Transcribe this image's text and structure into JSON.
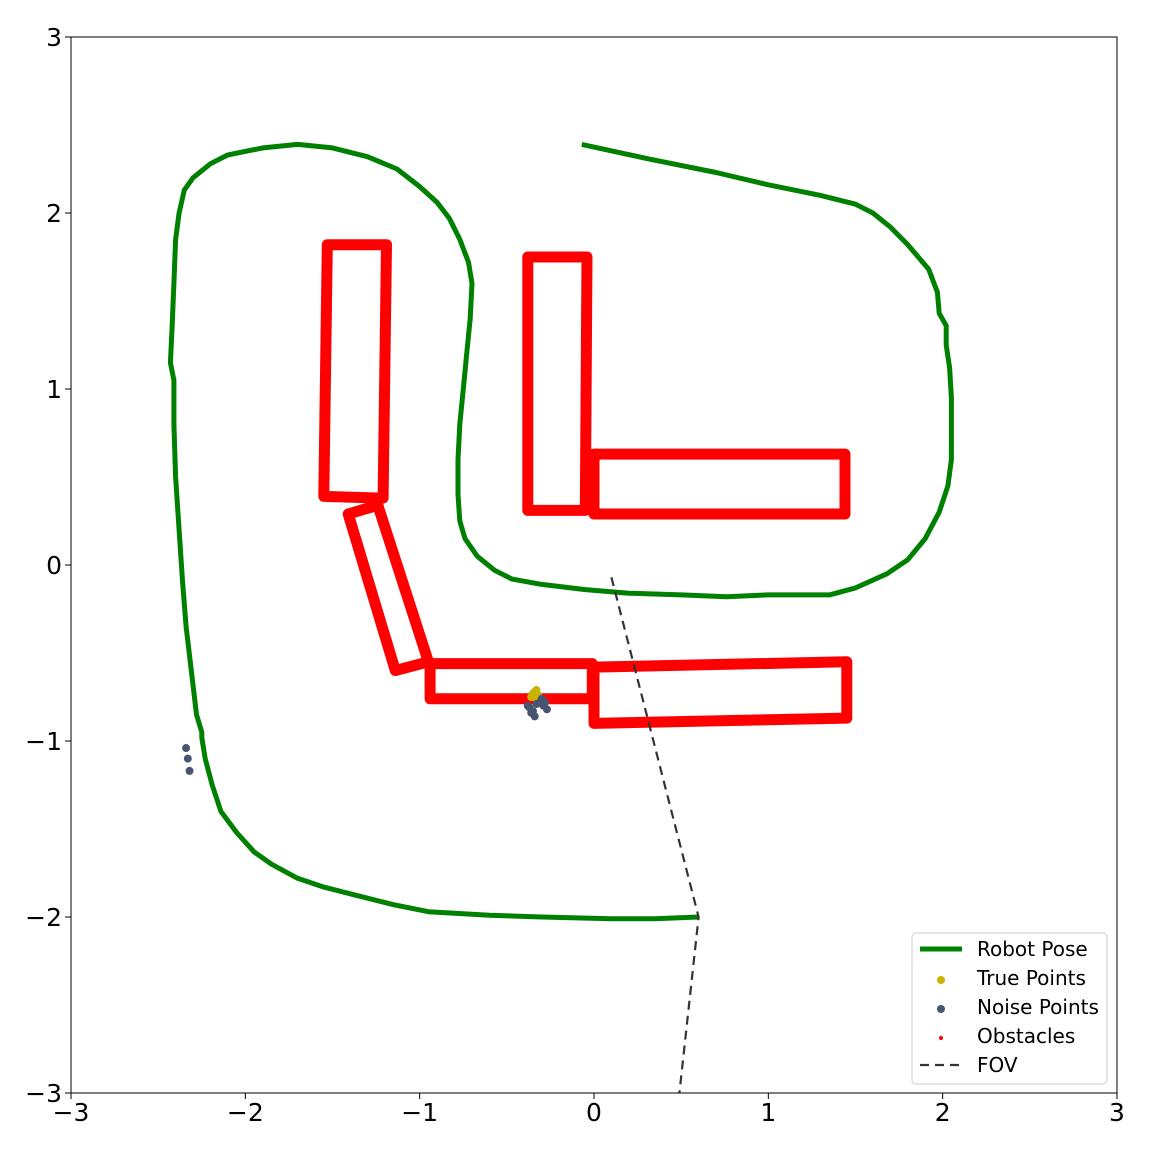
{
  "chart_data": {
    "type": "scatter",
    "title": "",
    "xlabel": "",
    "ylabel": "",
    "xlim": [
      -3,
      3
    ],
    "ylim": [
      -3,
      3
    ],
    "x_ticks": [
      -3,
      -2,
      -1,
      0,
      1,
      2,
      3
    ],
    "y_ticks": [
      -3,
      -2,
      -1,
      0,
      1,
      2,
      3
    ],
    "x_tick_labels": [
      "−3",
      "−2",
      "−1",
      "0",
      "1",
      "2",
      "3"
    ],
    "y_tick_labels": [
      "−3",
      "−2",
      "−1",
      "0",
      "1",
      "2",
      "3"
    ],
    "grid": false,
    "legend_position": "bottom-right",
    "series": [
      {
        "name": "Robot Pose",
        "kind": "line",
        "color": "#008000",
        "points": [
          [
            -0.07,
            2.39
          ],
          [
            0.3,
            2.31
          ],
          [
            0.7,
            2.23
          ],
          [
            1.0,
            2.16
          ],
          [
            1.3,
            2.1
          ],
          [
            1.5,
            2.05
          ],
          [
            1.6,
            2.0
          ],
          [
            1.7,
            1.92
          ],
          [
            1.8,
            1.82
          ],
          [
            1.92,
            1.68
          ],
          [
            1.97,
            1.55
          ],
          [
            1.98,
            1.43
          ],
          [
            2.02,
            1.36
          ],
          [
            2.02,
            1.25
          ],
          [
            2.04,
            1.12
          ],
          [
            2.05,
            0.95
          ],
          [
            2.05,
            0.8
          ],
          [
            2.05,
            0.6
          ],
          [
            2.03,
            0.45
          ],
          [
            1.98,
            0.3
          ],
          [
            1.9,
            0.15
          ],
          [
            1.8,
            0.03
          ],
          [
            1.68,
            -0.05
          ],
          [
            1.5,
            -0.13
          ],
          [
            1.35,
            -0.17
          ],
          [
            1.2,
            -0.17
          ],
          [
            1.0,
            -0.17
          ],
          [
            0.76,
            -0.18
          ],
          [
            0.5,
            -0.17
          ],
          [
            0.2,
            -0.16
          ],
          [
            -0.05,
            -0.14
          ],
          [
            -0.3,
            -0.11
          ],
          [
            -0.47,
            -0.08
          ],
          [
            -0.57,
            -0.03
          ],
          [
            -0.67,
            0.05
          ],
          [
            -0.74,
            0.15
          ],
          [
            -0.77,
            0.25
          ],
          [
            -0.78,
            0.4
          ],
          [
            -0.78,
            0.6
          ],
          [
            -0.77,
            0.8
          ],
          [
            -0.75,
            1.0
          ],
          [
            -0.73,
            1.2
          ],
          [
            -0.71,
            1.4
          ],
          [
            -0.7,
            1.6
          ],
          [
            -0.72,
            1.72
          ],
          [
            -0.77,
            1.85
          ],
          [
            -0.83,
            1.97
          ],
          [
            -0.9,
            2.06
          ],
          [
            -1.0,
            2.15
          ],
          [
            -1.13,
            2.25
          ],
          [
            -1.3,
            2.32
          ],
          [
            -1.5,
            2.37
          ],
          [
            -1.7,
            2.39
          ],
          [
            -1.9,
            2.37
          ],
          [
            -2.1,
            2.33
          ],
          [
            -2.2,
            2.28
          ],
          [
            -2.3,
            2.2
          ],
          [
            -2.35,
            2.13
          ],
          [
            -2.38,
            2.0
          ],
          [
            -2.4,
            1.85
          ],
          [
            -2.41,
            1.6
          ],
          [
            -2.42,
            1.35
          ],
          [
            -2.43,
            1.15
          ],
          [
            -2.41,
            1.05
          ],
          [
            -2.41,
            0.8
          ],
          [
            -2.4,
            0.5
          ],
          [
            -2.38,
            0.2
          ],
          [
            -2.36,
            -0.1
          ],
          [
            -2.34,
            -0.35
          ],
          [
            -2.31,
            -0.6
          ],
          [
            -2.28,
            -0.85
          ],
          [
            -2.25,
            -0.95
          ],
          [
            -2.25,
            -0.98
          ],
          [
            -2.23,
            -1.1
          ],
          [
            -2.19,
            -1.25
          ],
          [
            -2.14,
            -1.4
          ],
          [
            -2.05,
            -1.52
          ],
          [
            -1.95,
            -1.63
          ],
          [
            -1.85,
            -1.7
          ],
          [
            -1.7,
            -1.78
          ],
          [
            -1.55,
            -1.83
          ],
          [
            -1.35,
            -1.88
          ],
          [
            -1.15,
            -1.93
          ],
          [
            -0.95,
            -1.97
          ],
          [
            -0.6,
            -1.99
          ],
          [
            -0.3,
            -2.0
          ],
          [
            0.1,
            -2.01
          ],
          [
            0.35,
            -2.01
          ],
          [
            0.6,
            -2.0
          ]
        ]
      },
      {
        "name": "True Points",
        "kind": "scatter",
        "color": "#c8b400",
        "points": [
          [
            -0.34,
            -0.72
          ],
          [
            -0.33,
            -0.71
          ],
          [
            -0.35,
            -0.73
          ],
          [
            -0.32,
            -0.74
          ],
          [
            -0.36,
            -0.75
          ],
          [
            -0.33,
            -0.76
          ]
        ]
      },
      {
        "name": "Noise Points",
        "kind": "scatter",
        "color": "#485570",
        "points": [
          [
            -2.34,
            -1.04
          ],
          [
            -2.33,
            -1.1
          ],
          [
            -2.32,
            -1.17
          ],
          [
            -0.37,
            -0.81
          ],
          [
            -0.36,
            -0.84
          ],
          [
            -0.34,
            -0.86
          ],
          [
            -0.38,
            -0.8
          ],
          [
            -0.33,
            -0.79
          ],
          [
            -0.31,
            -0.78
          ],
          [
            -0.29,
            -0.8
          ],
          [
            -0.27,
            -0.82
          ],
          [
            -0.28,
            -0.78
          ],
          [
            -0.35,
            -0.83
          ],
          [
            -0.3,
            -0.76
          ]
        ]
      },
      {
        "name": "Obstacles",
        "kind": "polygons",
        "color": "#ff0000",
        "polygons": [
          [
            [
              -1.53,
              1.82
            ],
            [
              -1.19,
              1.82
            ],
            [
              -1.21,
              0.38
            ],
            [
              -1.55,
              0.39
            ]
          ],
          [
            [
              -0.38,
              1.75
            ],
            [
              -0.04,
              1.75
            ],
            [
              -0.05,
              0.31
            ],
            [
              -0.38,
              0.31
            ]
          ],
          [
            [
              0.0,
              0.63
            ],
            [
              1.44,
              0.63
            ],
            [
              1.44,
              0.29
            ],
            [
              0.0,
              0.29
            ]
          ],
          [
            [
              -1.41,
              0.29
            ],
            [
              -1.24,
              0.34
            ],
            [
              -0.95,
              -0.55
            ],
            [
              -1.14,
              -0.6
            ]
          ],
          [
            [
              -0.94,
              -0.56
            ],
            [
              -0.01,
              -0.56
            ],
            [
              -0.01,
              -0.76
            ],
            [
              -0.94,
              -0.76
            ]
          ],
          [
            [
              0.0,
              -0.58
            ],
            [
              1.45,
              -0.55
            ],
            [
              1.45,
              -0.87
            ],
            [
              0.0,
              -0.9
            ]
          ]
        ]
      },
      {
        "name": "FOV",
        "kind": "dashed-line",
        "color": "#333333",
        "points": [
          [
            0.1,
            -0.07
          ],
          [
            0.6,
            -2.0
          ],
          [
            0.49,
            -3.0
          ]
        ]
      }
    ]
  }
}
